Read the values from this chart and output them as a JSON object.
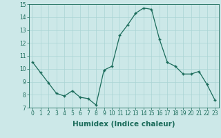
{
  "x": [
    0,
    1,
    2,
    3,
    4,
    5,
    6,
    7,
    8,
    9,
    10,
    11,
    12,
    13,
    14,
    15,
    16,
    17,
    18,
    19,
    20,
    21,
    22,
    23
  ],
  "y": [
    10.5,
    9.7,
    8.9,
    8.1,
    7.9,
    8.3,
    7.8,
    7.7,
    7.2,
    9.9,
    10.2,
    12.6,
    13.4,
    14.3,
    14.7,
    14.6,
    12.3,
    10.5,
    10.2,
    9.6,
    9.6,
    9.8,
    8.8,
    7.6
  ],
  "xlabel": "Humidex (Indice chaleur)",
  "ylim": [
    7,
    15
  ],
  "xlim_min": -0.5,
  "xlim_max": 23.5,
  "yticks": [
    7,
    8,
    9,
    10,
    11,
    12,
    13,
    14,
    15
  ],
  "xticks": [
    0,
    1,
    2,
    3,
    4,
    5,
    6,
    7,
    8,
    9,
    10,
    11,
    12,
    13,
    14,
    15,
    16,
    17,
    18,
    19,
    20,
    21,
    22,
    23
  ],
  "line_color": "#1a6b5a",
  "marker": "+",
  "bg_color": "#cce8e8",
  "grid_color": "#aad4d4",
  "tick_fontsize": 5.5,
  "xlabel_fontsize": 7.5,
  "linewidth": 0.9,
  "markersize": 3,
  "markeredgewidth": 1.0
}
